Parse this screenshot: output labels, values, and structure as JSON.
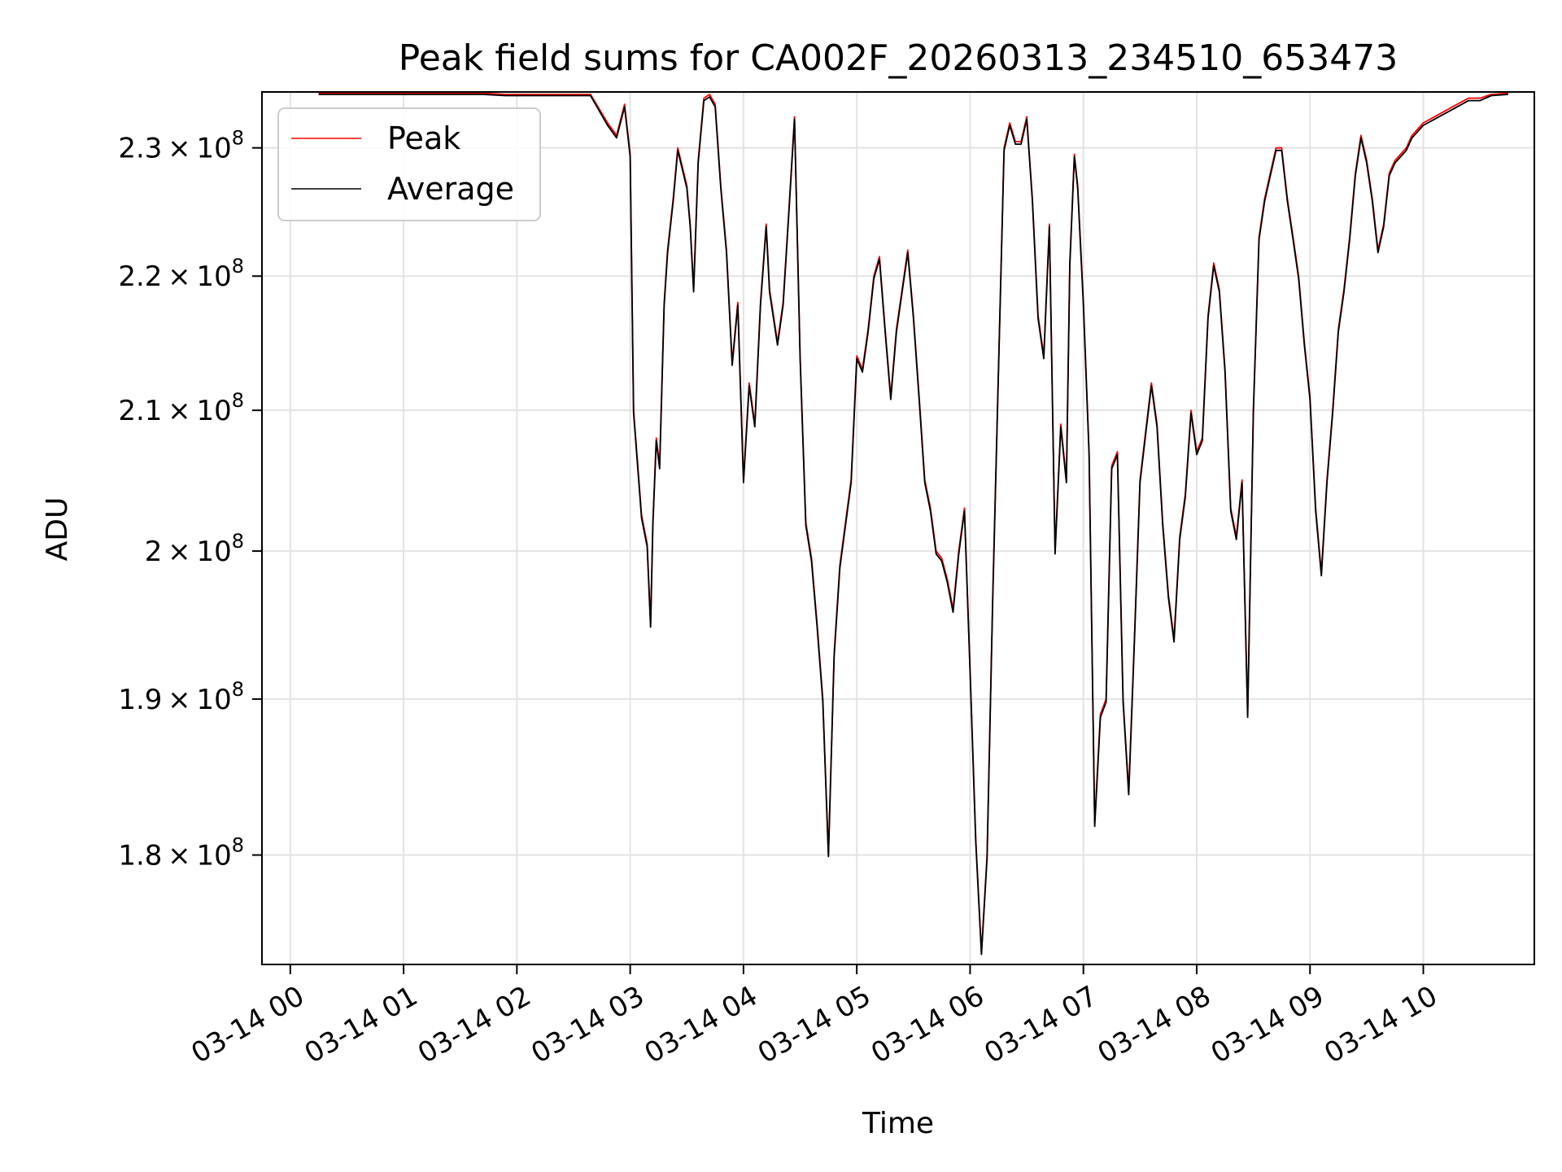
{
  "chart_data": {
    "type": "line",
    "title": "Peak field sums for CA002F_20260313_234510_653473",
    "xlabel": "Time",
    "ylabel": "ADU",
    "ylog": true,
    "xlim": [
      -0.25,
      10.98
    ],
    "ylim": [
      173300000,
      234500000
    ],
    "grid": true,
    "legend_position": "upper-left",
    "x_tick_values": [
      0,
      1,
      2,
      3,
      4,
      5,
      6,
      7,
      8,
      9,
      10
    ],
    "x_tick_labels": [
      "03-14 00",
      "03-14 01",
      "03-14 02",
      "03-14 03",
      "03-14 04",
      "03-14 05",
      "03-14 06",
      "03-14 07",
      "03-14 08",
      "03-14 09",
      "03-14 10"
    ],
    "y_ticks": [
      {
        "value": 180000000,
        "mantissa": "1.8",
        "exponent": "8"
      },
      {
        "value": 190000000,
        "mantissa": "1.9",
        "exponent": "8"
      },
      {
        "value": 200000000,
        "mantissa": "2",
        "exponent": "8"
      },
      {
        "value": 210000000,
        "mantissa": "2.1",
        "exponent": "8"
      },
      {
        "value": 220000000,
        "mantissa": "2.2",
        "exponent": "8"
      },
      {
        "value": 230000000,
        "mantissa": "2.3",
        "exponent": "8"
      }
    ],
    "series": [
      {
        "name": "Peak",
        "color": "#ff0000",
        "x": [
          0.25,
          1.7,
          1.9,
          2.65,
          2.8,
          2.88,
          2.95,
          3.0,
          3.03,
          3.1,
          3.15,
          3.18,
          3.2,
          3.23,
          3.26,
          3.3,
          3.33,
          3.38,
          3.42,
          3.5,
          3.53,
          3.56,
          3.6,
          3.65,
          3.7,
          3.75,
          3.8,
          3.85,
          3.9,
          3.95,
          4.0,
          4.05,
          4.1,
          4.15,
          4.2,
          4.23,
          4.3,
          4.35,
          4.4,
          4.45,
          4.5,
          4.55,
          4.6,
          4.65,
          4.7,
          4.75,
          4.8,
          4.85,
          4.95,
          5.0,
          5.05,
          5.1,
          5.15,
          5.2,
          5.25,
          5.3,
          5.35,
          5.4,
          5.45,
          5.5,
          5.55,
          5.6,
          5.65,
          5.7,
          5.75,
          5.8,
          5.85,
          5.9,
          5.95,
          6.0,
          6.05,
          6.1,
          6.15,
          6.2,
          6.25,
          6.3,
          6.35,
          6.4,
          6.45,
          6.5,
          6.55,
          6.6,
          6.65,
          6.7,
          6.75,
          6.8,
          6.85,
          6.88,
          6.92,
          6.95,
          7.0,
          7.05,
          7.1,
          7.15,
          7.2,
          7.25,
          7.3,
          7.35,
          7.4,
          7.45,
          7.5,
          7.55,
          7.6,
          7.65,
          7.7,
          7.75,
          7.8,
          7.85,
          7.9,
          7.95,
          8.0,
          8.05,
          8.1,
          8.15,
          8.2,
          8.25,
          8.3,
          8.35,
          8.4,
          8.45,
          8.5,
          8.55,
          8.6,
          8.65,
          8.7,
          8.75,
          8.8,
          8.85,
          8.9,
          8.95,
          9.0,
          9.05,
          9.1,
          9.15,
          9.2,
          9.25,
          9.3,
          9.35,
          9.4,
          9.45,
          9.5,
          9.55,
          9.6,
          9.65,
          9.7,
          9.75,
          9.8,
          9.85,
          9.9,
          9.95,
          10.0,
          10.1,
          10.2,
          10.3,
          10.4,
          10.5,
          10.6,
          10.75
        ],
        "y": [
          234400000,
          234400000,
          234300000,
          234300000,
          232000000,
          231000000,
          233500000,
          229500000,
          210000000,
          202500000,
          200500000,
          195000000,
          202000000,
          208000000,
          206000000,
          218000000,
          222000000,
          226000000,
          230000000,
          227000000,
          224000000,
          219000000,
          229000000,
          234000000,
          234300000,
          233500000,
          227000000,
          222000000,
          213500000,
          218000000,
          205000000,
          212000000,
          209000000,
          218000000,
          224000000,
          219000000,
          215000000,
          218000000,
          225000000,
          232500000,
          214000000,
          202000000,
          199500000,
          195000000,
          190000000,
          180000000,
          193000000,
          199000000,
          205000000,
          214000000,
          213000000,
          216000000,
          220000000,
          221500000,
          216000000,
          211000000,
          216000000,
          219000000,
          222000000,
          217000000,
          211000000,
          205000000,
          203000000,
          200000000,
          199500000,
          198000000,
          196000000,
          200000000,
          203000000,
          192000000,
          181000000,
          174000000,
          180000000,
          197000000,
          213000000,
          230000000,
          232000000,
          230500000,
          230500000,
          232500000,
          226000000,
          217000000,
          214000000,
          224000000,
          200000000,
          209000000,
          205000000,
          221000000,
          229500000,
          227000000,
          218000000,
          207000000,
          182000000,
          189000000,
          190000000,
          206000000,
          207000000,
          190000000,
          184000000,
          194000000,
          205000000,
          208500000,
          212000000,
          209000000,
          202000000,
          197000000,
          194000000,
          201000000,
          204000000,
          210000000,
          207000000,
          208000000,
          217000000,
          221000000,
          219000000,
          213000000,
          203000000,
          201000000,
          205000000,
          189000000,
          210000000,
          223000000,
          226000000,
          228000000,
          230000000,
          230000000,
          226000000,
          223000000,
          220000000,
          215000000,
          211000000,
          203000000,
          198500000,
          205000000,
          210000000,
          216000000,
          219000000,
          223000000,
          228000000,
          231000000,
          229000000,
          226000000,
          222000000,
          224000000,
          228000000,
          229000000,
          229500000,
          230000000,
          231000000,
          231500000,
          232000000,
          232500000,
          233000000,
          233500000,
          234000000,
          234000000,
          234300000,
          234400000
        ]
      },
      {
        "name": "Average",
        "color": "#000000",
        "x": [
          0.25,
          1.7,
          1.9,
          2.65,
          2.8,
          2.88,
          2.95,
          3.0,
          3.03,
          3.1,
          3.15,
          3.18,
          3.2,
          3.23,
          3.26,
          3.3,
          3.33,
          3.38,
          3.42,
          3.5,
          3.53,
          3.56,
          3.6,
          3.65,
          3.7,
          3.75,
          3.8,
          3.85,
          3.9,
          3.95,
          4.0,
          4.05,
          4.1,
          4.15,
          4.2,
          4.23,
          4.3,
          4.35,
          4.4,
          4.45,
          4.5,
          4.55,
          4.6,
          4.65,
          4.7,
          4.75,
          4.8,
          4.85,
          4.95,
          5.0,
          5.05,
          5.1,
          5.15,
          5.2,
          5.25,
          5.3,
          5.35,
          5.4,
          5.45,
          5.5,
          5.55,
          5.6,
          5.65,
          5.7,
          5.75,
          5.8,
          5.85,
          5.9,
          5.95,
          6.0,
          6.05,
          6.1,
          6.15,
          6.2,
          6.25,
          6.3,
          6.35,
          6.4,
          6.45,
          6.5,
          6.55,
          6.6,
          6.65,
          6.7,
          6.75,
          6.8,
          6.85,
          6.88,
          6.92,
          6.95,
          7.0,
          7.05,
          7.1,
          7.15,
          7.2,
          7.25,
          7.3,
          7.35,
          7.4,
          7.45,
          7.5,
          7.55,
          7.6,
          7.65,
          7.7,
          7.75,
          7.8,
          7.85,
          7.9,
          7.95,
          8.0,
          8.05,
          8.1,
          8.15,
          8.2,
          8.25,
          8.3,
          8.35,
          8.4,
          8.45,
          8.5,
          8.55,
          8.6,
          8.65,
          8.7,
          8.75,
          8.8,
          8.85,
          8.9,
          8.95,
          9.0,
          9.05,
          9.1,
          9.15,
          9.2,
          9.25,
          9.3,
          9.35,
          9.4,
          9.45,
          9.5,
          9.55,
          9.6,
          9.65,
          9.7,
          9.75,
          9.8,
          9.85,
          9.9,
          9.95,
          10.0,
          10.1,
          10.2,
          10.3,
          10.4,
          10.5,
          10.6,
          10.75
        ],
        "y": [
          234300000,
          234300000,
          234200000,
          234200000,
          231800000,
          230800000,
          233300000,
          229300000,
          209800000,
          202300000,
          200300000,
          194800000,
          201800000,
          207800000,
          205800000,
          217800000,
          221800000,
          225800000,
          229800000,
          226800000,
          223800000,
          218800000,
          228800000,
          233800000,
          234100000,
          233300000,
          226800000,
          221800000,
          213300000,
          217800000,
          204800000,
          211800000,
          208800000,
          217800000,
          223800000,
          218800000,
          214800000,
          217800000,
          224800000,
          232300000,
          213800000,
          201800000,
          199300000,
          194800000,
          189800000,
          179900000,
          192800000,
          198800000,
          204800000,
          213800000,
          212800000,
          215800000,
          219800000,
          221300000,
          215800000,
          210800000,
          215800000,
          218800000,
          221800000,
          216800000,
          210800000,
          204800000,
          202800000,
          199800000,
          199300000,
          197800000,
          195800000,
          199800000,
          202800000,
          191800000,
          180800000,
          173900000,
          179800000,
          196800000,
          212800000,
          229800000,
          231800000,
          230300000,
          230300000,
          232300000,
          225800000,
          216800000,
          213800000,
          223800000,
          199800000,
          208800000,
          204800000,
          220800000,
          229300000,
          226800000,
          217800000,
          206800000,
          181800000,
          188800000,
          189800000,
          205800000,
          206800000,
          189800000,
          183800000,
          193800000,
          204800000,
          208300000,
          211800000,
          208800000,
          201800000,
          196800000,
          193800000,
          200800000,
          203800000,
          209800000,
          206800000,
          207800000,
          216800000,
          220800000,
          218800000,
          212800000,
          202800000,
          200800000,
          204800000,
          188800000,
          209800000,
          222800000,
          225800000,
          227800000,
          229800000,
          229800000,
          225800000,
          222800000,
          219800000,
          214800000,
          210800000,
          202800000,
          198300000,
          204800000,
          209800000,
          215800000,
          218800000,
          222800000,
          227800000,
          230800000,
          228800000,
          225800000,
          221800000,
          223800000,
          227800000,
          228800000,
          229300000,
          229800000,
          230800000,
          231300000,
          231800000,
          232300000,
          232800000,
          233300000,
          233800000,
          233800000,
          234200000,
          234300000
        ]
      }
    ]
  }
}
